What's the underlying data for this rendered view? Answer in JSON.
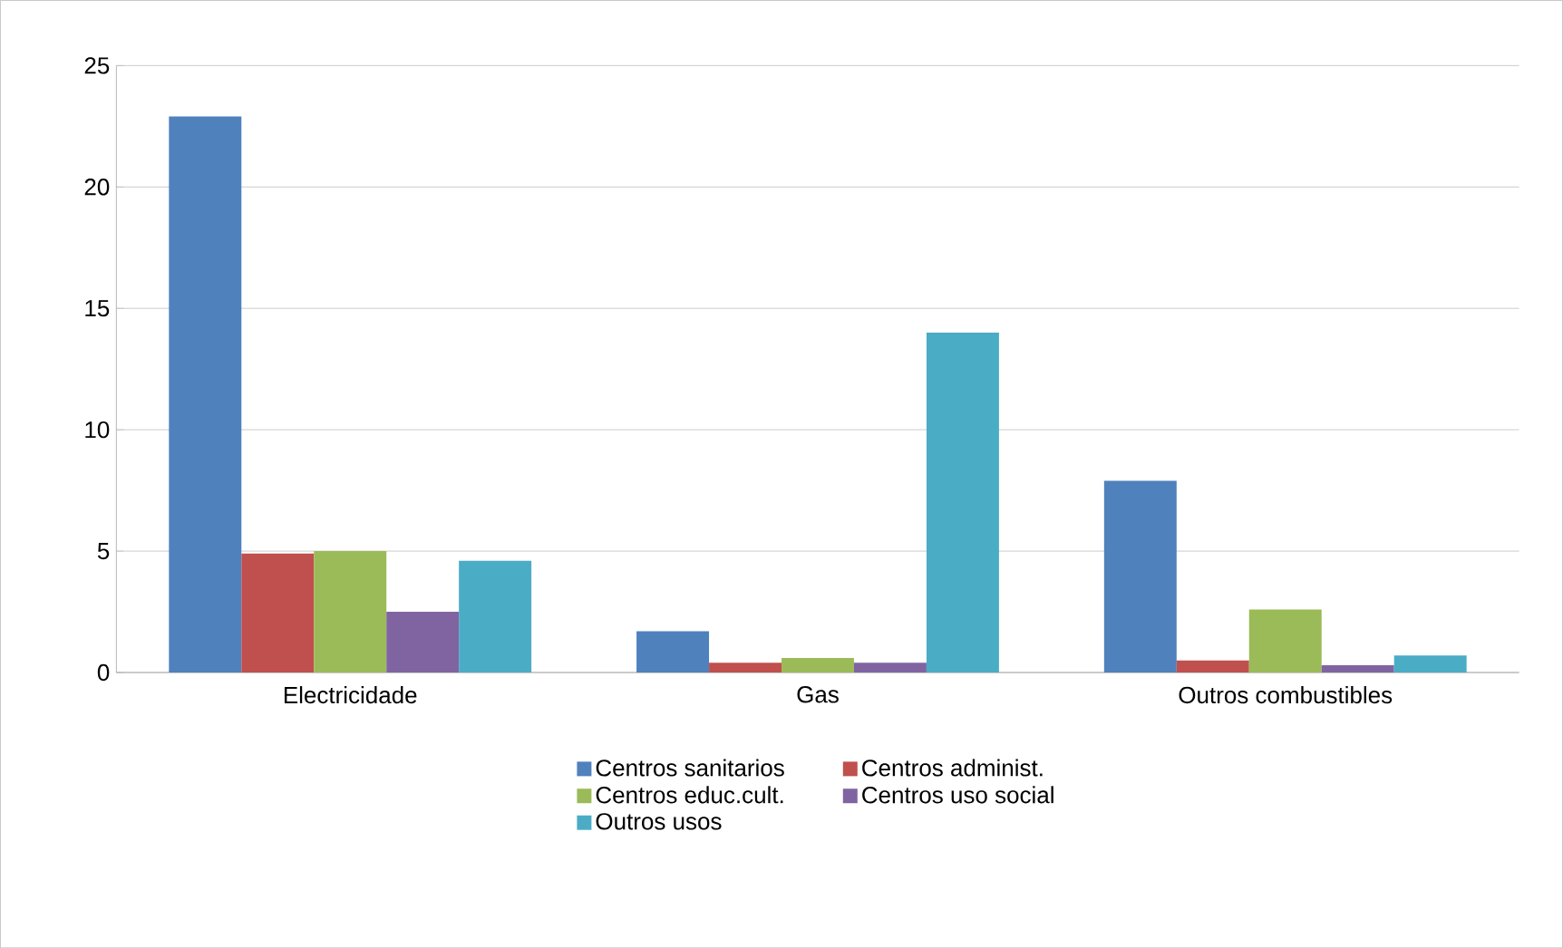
{
  "chart_data": {
    "type": "bar",
    "categories": [
      "Electricidade",
      "Gas",
      "Outros combustibles"
    ],
    "series": [
      {
        "name": "Centros sanitarios",
        "color": "#4f81bd",
        "values": [
          22.9,
          1.7,
          7.9
        ]
      },
      {
        "name": "Centros administ.",
        "color": "#c0504d",
        "values": [
          4.9,
          0.4,
          0.5
        ]
      },
      {
        "name": "Centros educ.cult.",
        "color": "#9bbb59",
        "values": [
          5.0,
          0.6,
          2.6
        ]
      },
      {
        "name": "Centros uso social",
        "color": "#8064a2",
        "values": [
          2.5,
          0.4,
          0.3
        ]
      },
      {
        "name": "Outros usos",
        "color": "#4bacc6",
        "values": [
          4.6,
          14.0,
          0.7
        ]
      }
    ],
    "ylim": [
      0,
      25
    ],
    "yticks": [
      0,
      5,
      10,
      15,
      20,
      25
    ],
    "grid": "y",
    "legend": "bottom"
  }
}
